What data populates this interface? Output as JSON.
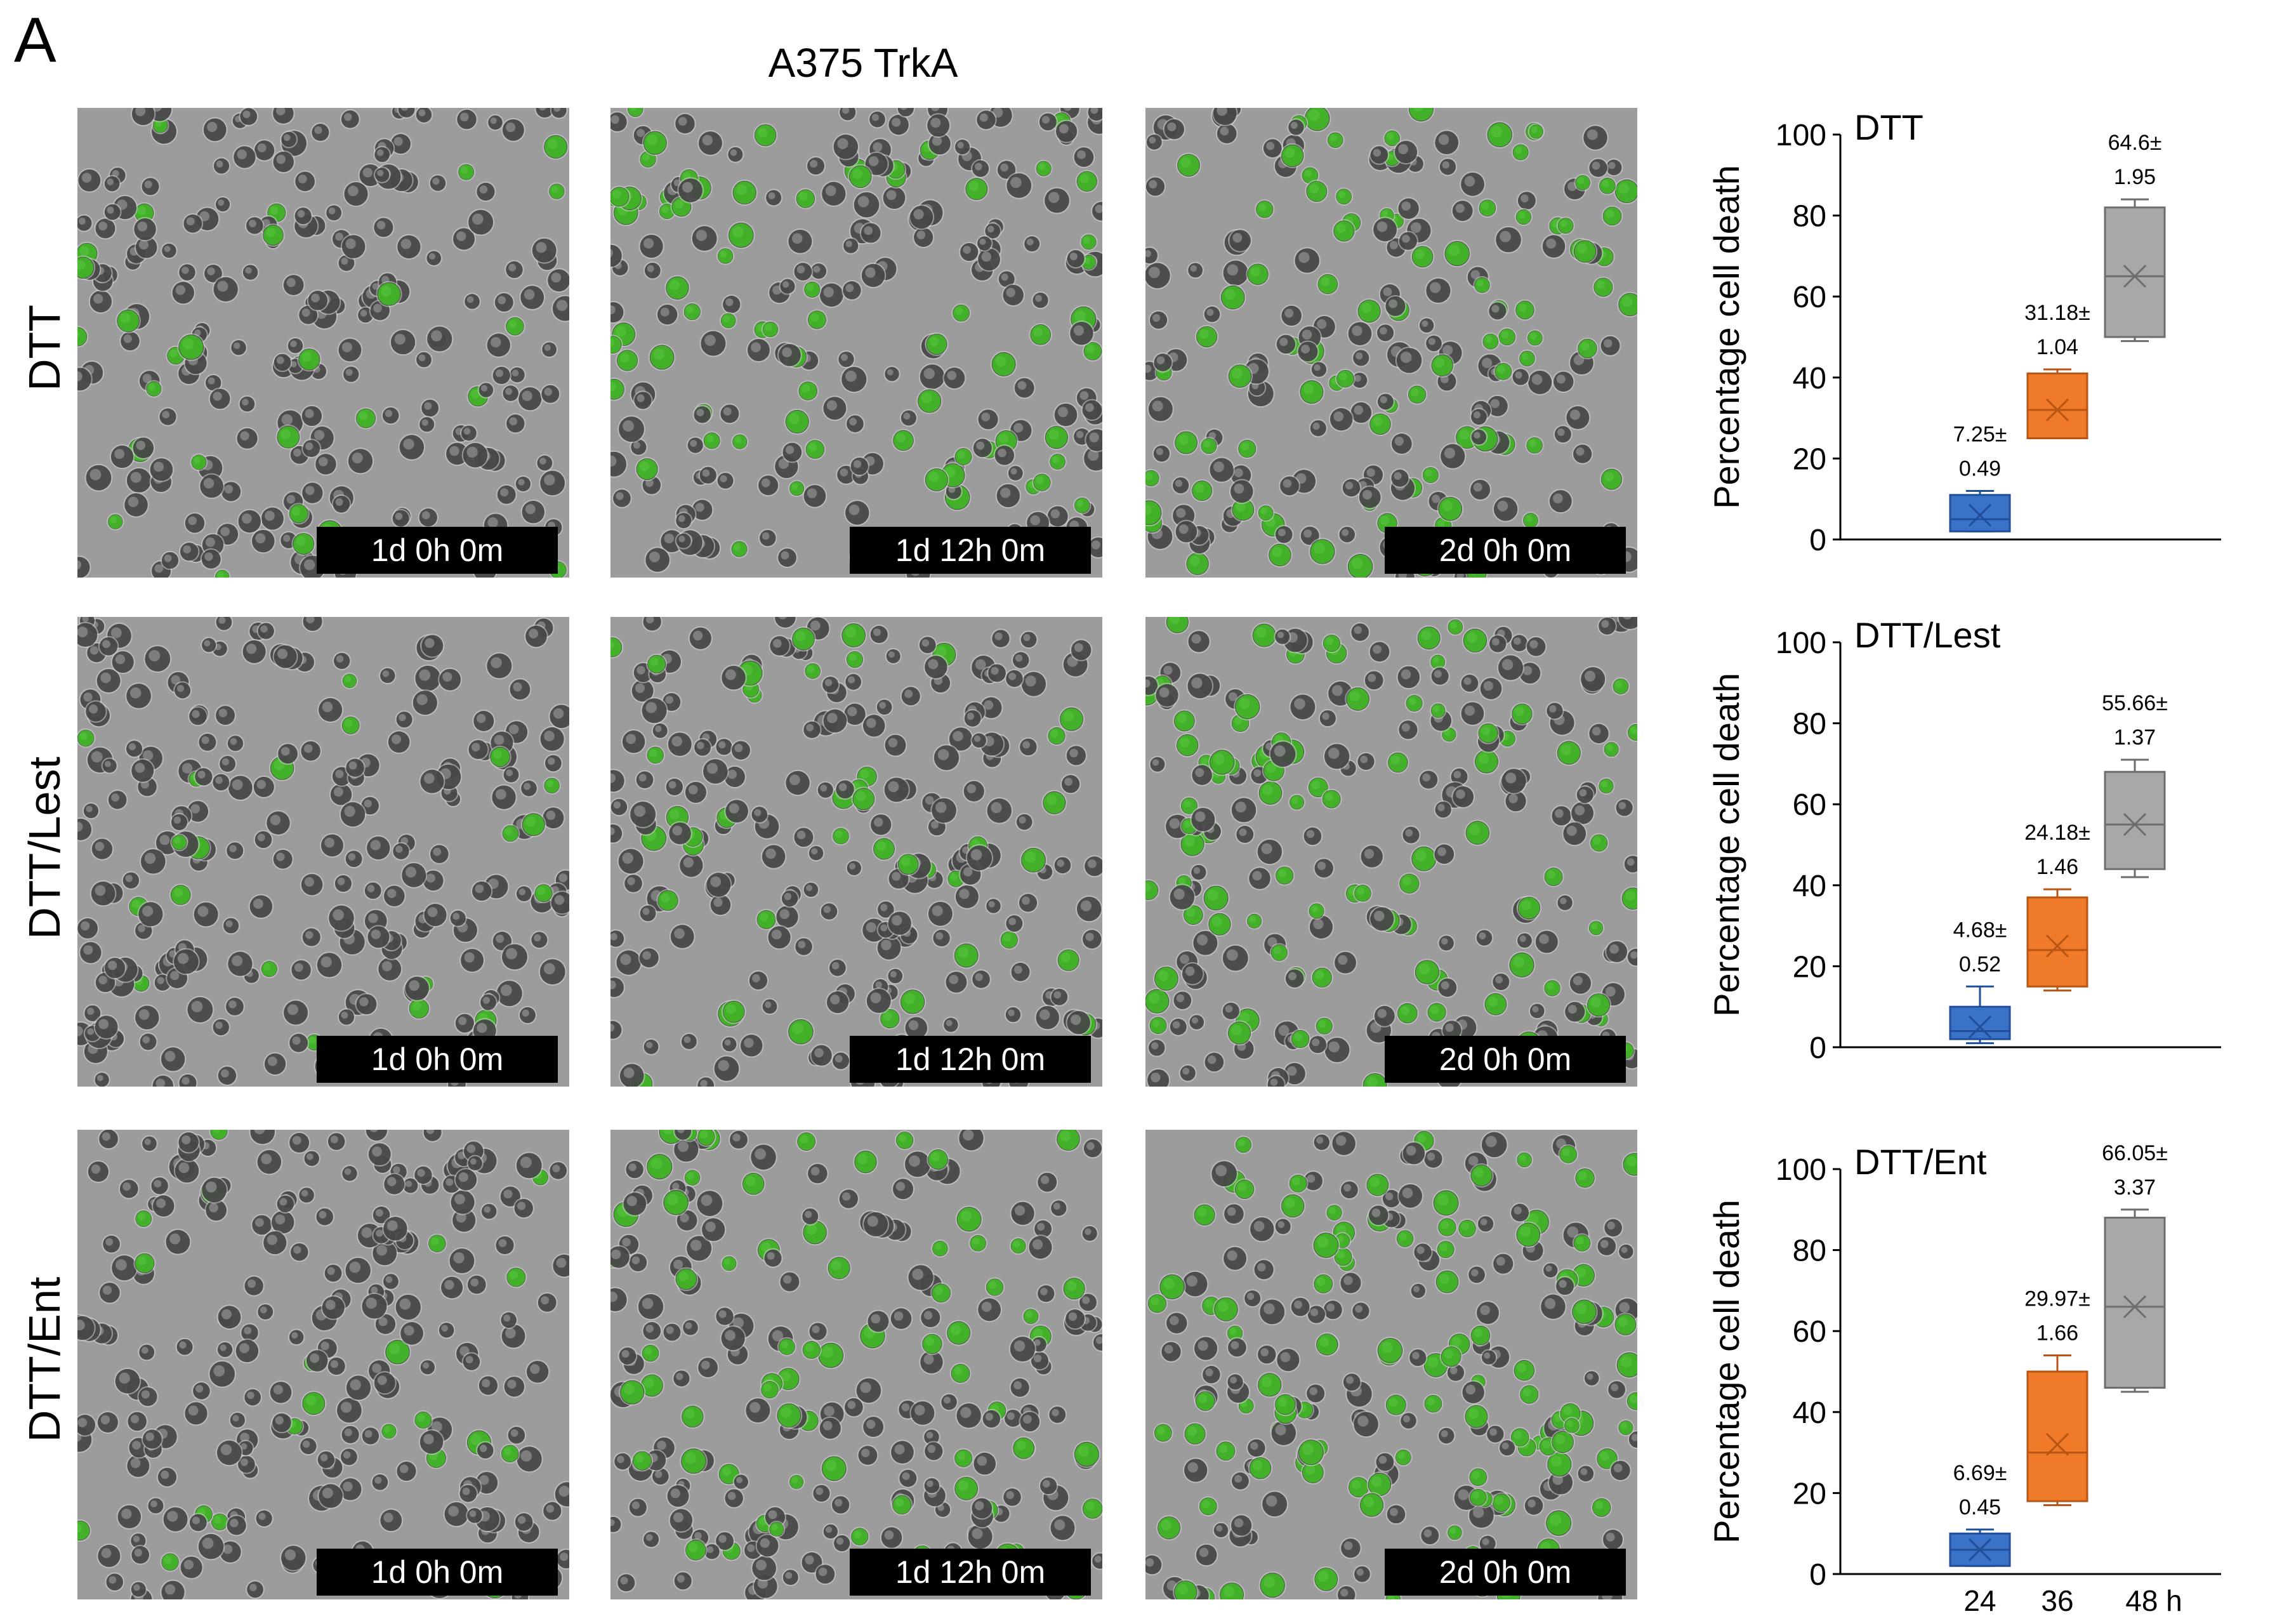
{
  "figure": {
    "panel_letter": "A",
    "title": "A375 TrkA",
    "rows": [
      {
        "label": "DTT",
        "timestamps": [
          "1d 0h 0m",
          "1d 12h 0m",
          "2d 0h 0m"
        ]
      },
      {
        "label": "DTT/Lest",
        "timestamps": [
          "1d 0h 0m",
          "1d 12h 0m",
          "2d 0h 0m"
        ]
      },
      {
        "label": "DTT/Ent",
        "timestamps": [
          "1d 0h 0m",
          "1d 12h 0m",
          "2d 0h 0m"
        ]
      }
    ]
  },
  "colors": {
    "background": "#ffffff",
    "micro_bg": "#9c9c9c",
    "green": "#3fd21c",
    "box_24": "#3a72c8",
    "box_24_line": "#1f4f9a",
    "box_36": "#ee7a2a",
    "box_36_line": "#b95514",
    "box_48": "#a8a8a8",
    "box_48_line": "#6d6d6d"
  },
  "chart_data": [
    {
      "type": "box",
      "title": "DTT",
      "ylabel": "Percentage cell death",
      "ylim": [
        0,
        100
      ],
      "yticks": [
        "0",
        "20",
        "40",
        "60",
        "80",
        "100"
      ],
      "categories": [
        "24",
        "36",
        "48 h"
      ],
      "show_xlabels": false,
      "boxes": [
        {
          "category": "24",
          "min": 2,
          "q1": 2,
          "median": 5,
          "q3": 11,
          "max": 12,
          "mean": 6,
          "label_top": "7.25±",
          "label_bottom": "0.49"
        },
        {
          "category": "36",
          "min": 25,
          "q1": 25,
          "median": 32,
          "q3": 41,
          "max": 42,
          "mean": 32,
          "label_top": "31.18±",
          "label_bottom": "1.04"
        },
        {
          "category": "48 h",
          "min": 49,
          "q1": 50,
          "median": 65,
          "q3": 82,
          "max": 84,
          "mean": 65,
          "label_top": "64.6±",
          "label_bottom": "1.95"
        }
      ]
    },
    {
      "type": "box",
      "title": "DTT/Lest",
      "ylabel": "Percentage cell death",
      "ylim": [
        0,
        100
      ],
      "yticks": [
        "0",
        "20",
        "40",
        "60",
        "80",
        "100"
      ],
      "categories": [
        "24",
        "36",
        "48 h"
      ],
      "show_xlabels": false,
      "boxes": [
        {
          "category": "24",
          "min": 1,
          "q1": 2,
          "median": 4,
          "q3": 10,
          "max": 15,
          "mean": 5,
          "label_top": "4.68±",
          "label_bottom": "0.52"
        },
        {
          "category": "36",
          "min": 14,
          "q1": 15,
          "median": 24,
          "q3": 37,
          "max": 39,
          "mean": 25,
          "label_top": "24.18±",
          "label_bottom": "1.46"
        },
        {
          "category": "48 h",
          "min": 42,
          "q1": 44,
          "median": 55,
          "q3": 68,
          "max": 71,
          "mean": 55,
          "label_top": "55.66±",
          "label_bottom": "1.37"
        }
      ]
    },
    {
      "type": "box",
      "title": "DTT/Ent",
      "ylabel": "Percentage cell death",
      "ylim": [
        0,
        100
      ],
      "yticks": [
        "0",
        "20",
        "40",
        "60",
        "80",
        "100"
      ],
      "categories": [
        "24",
        "36",
        "48 h"
      ],
      "show_xlabels": true,
      "boxes": [
        {
          "category": "24",
          "min": 2,
          "q1": 2,
          "median": 6,
          "q3": 10,
          "max": 11,
          "mean": 6,
          "label_top": "6.69±",
          "label_bottom": "0.45"
        },
        {
          "category": "36",
          "min": 17,
          "q1": 18,
          "median": 30,
          "q3": 50,
          "max": 54,
          "mean": 32,
          "label_top": "29.97±",
          "label_bottom": "1.66"
        },
        {
          "category": "48 h",
          "min": 45,
          "q1": 46,
          "median": 66,
          "q3": 88,
          "max": 90,
          "mean": 66,
          "label_top": "66.05±",
          "label_bottom": "3.37"
        }
      ]
    }
  ]
}
